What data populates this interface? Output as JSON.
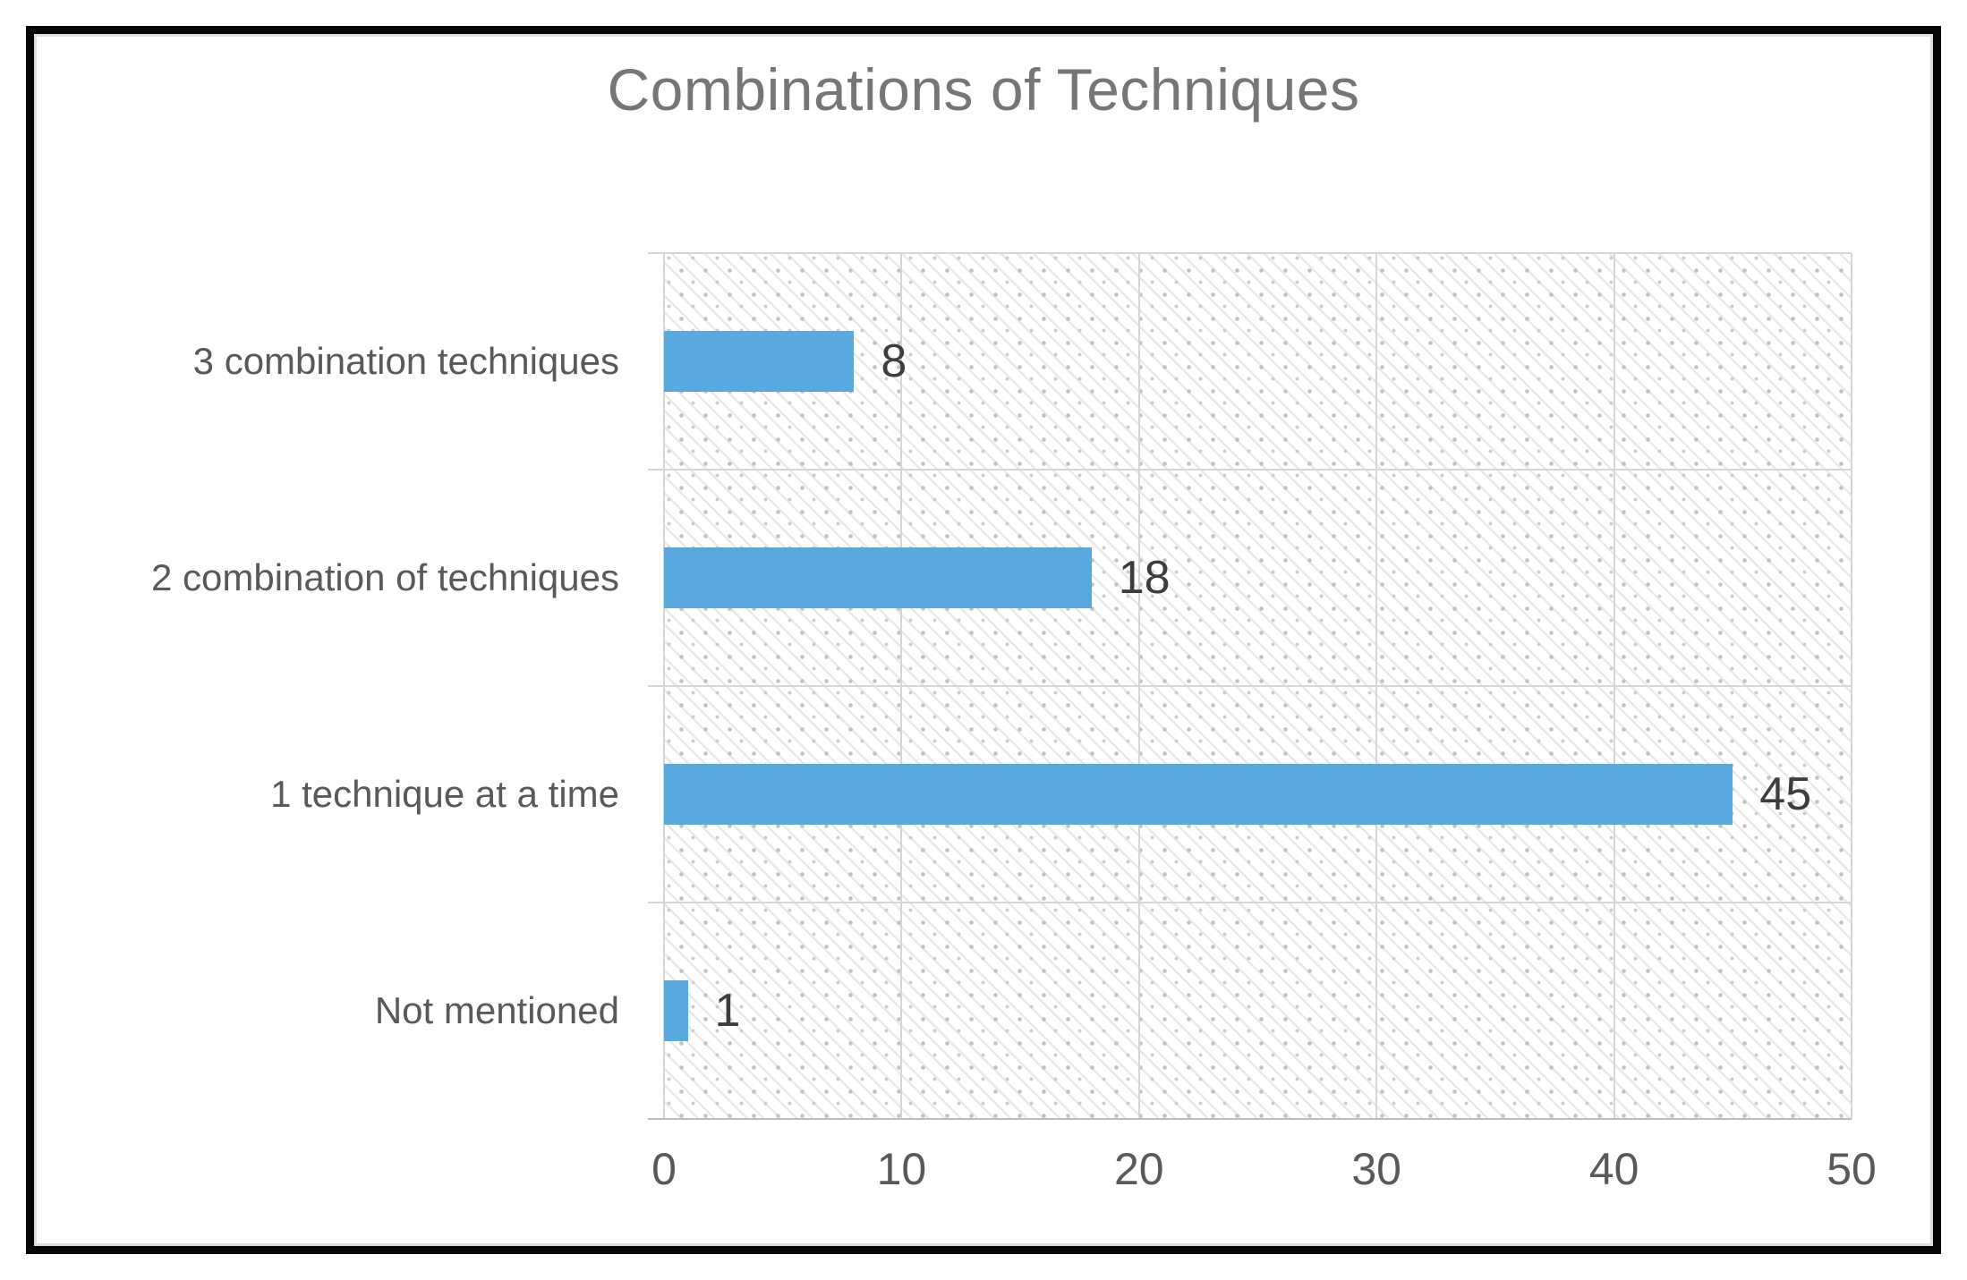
{
  "chart_data": {
    "type": "bar",
    "orientation": "horizontal",
    "title": "Combinations of Techniques",
    "categories": [
      "3 combination techniques",
      "2 combination of techniques",
      "1 technique at a time",
      "Not mentioned"
    ],
    "values": [
      8,
      18,
      45,
      1
    ],
    "data_labels": [
      "8",
      "18",
      "45",
      "1"
    ],
    "x_ticks": [
      0,
      10,
      20,
      30,
      40,
      50
    ],
    "xlim": [
      0,
      50
    ],
    "xlabel": "",
    "ylabel": "",
    "grid": true,
    "legend": false,
    "plot_background_pattern": "diagonal-hatch-with-dots",
    "colors": {
      "bar": "#59a9e0",
      "title_text": "#767676",
      "category_text": "#595959",
      "value_text": "#3d3d3d",
      "tick_text": "#595959",
      "gridline": "#d6d6d6",
      "axis_line": "#bdbdbd",
      "frame_border": "#070707",
      "frame_inner_line": "#dedede"
    }
  }
}
